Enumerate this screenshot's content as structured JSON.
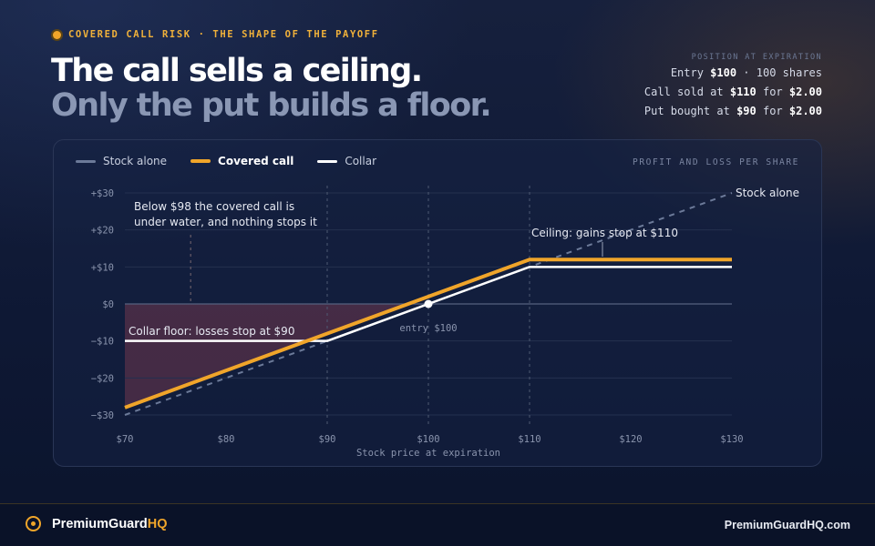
{
  "header": {
    "kicker": "COVERED CALL RISK · THE SHAPE OF THE PAYOFF",
    "title_line1": "The call sells a ceiling.",
    "title_line2": "Only the put builds a floor."
  },
  "position": {
    "label": "POSITION AT EXPIRATION",
    "entry_prefix": "Entry ",
    "entry_price": "$100",
    "entry_suffix": " · 100 shares",
    "call_prefix": "Call sold at ",
    "call_strike": "$110",
    "call_mid": " for ",
    "call_premium": "$2.00",
    "put_prefix": "Put bought at ",
    "put_strike": "$90",
    "put_mid": " for ",
    "put_premium": "$2.00"
  },
  "chart_data": {
    "type": "line",
    "panel_caption": "PROFIT AND LOSS PER SHARE",
    "xlabel": "Stock price at expiration",
    "xlim": [
      70,
      130
    ],
    "ylim": [
      -30,
      30
    ],
    "x_ticks": [
      70,
      80,
      90,
      100,
      110,
      120,
      130
    ],
    "x_tick_labels": [
      "$70",
      "$80",
      "$90",
      "$100",
      "$110",
      "$120",
      "$130"
    ],
    "y_ticks": [
      30,
      20,
      10,
      0,
      -10,
      -20,
      -30
    ],
    "y_tick_labels": [
      "+$30",
      "+$20",
      "+$10",
      "$0",
      "−$10",
      "−$20",
      "−$30"
    ],
    "grid": true,
    "legend_position": "top-left",
    "series": [
      {
        "name": "Stock alone",
        "color": "#6c7a99",
        "style": "dashed",
        "points": [
          [
            70,
            -30
          ],
          [
            130,
            30
          ]
        ]
      },
      {
        "name": "Covered call",
        "color": "#f0a52a",
        "style": "solid",
        "bold_legend": true,
        "points": [
          [
            70,
            -28
          ],
          [
            110,
            12
          ],
          [
            130,
            12
          ]
        ]
      },
      {
        "name": "Collar",
        "color": "#ffffff",
        "style": "solid",
        "points": [
          [
            70,
            -10
          ],
          [
            90,
            -10
          ],
          [
            110,
            10
          ],
          [
            130,
            10
          ]
        ]
      }
    ],
    "entry_marker": {
      "x": 100,
      "y": 0,
      "label": "entry $100"
    },
    "strike_lines": [
      90,
      100,
      110
    ],
    "shaded_loss_region": {
      "from_x": 70,
      "to_x": 98,
      "color": "#b04a5a"
    },
    "annotations": {
      "stock_end": "Stock alone",
      "underwater_line1": "Below $98 the covered call is",
      "underwater_line2": "under water, and nothing stops it",
      "ceiling": "Ceiling: gains stop at $110",
      "floor": "Collar floor: losses stop at $90"
    }
  },
  "footer": {
    "brand_main": "PremiumGuard",
    "brand_accent": "HQ",
    "site": "PremiumGuardHQ.com"
  },
  "colors": {
    "accent": "#f0a52a",
    "background": "#0f1a36",
    "loss_fill": "#b04a5a"
  }
}
